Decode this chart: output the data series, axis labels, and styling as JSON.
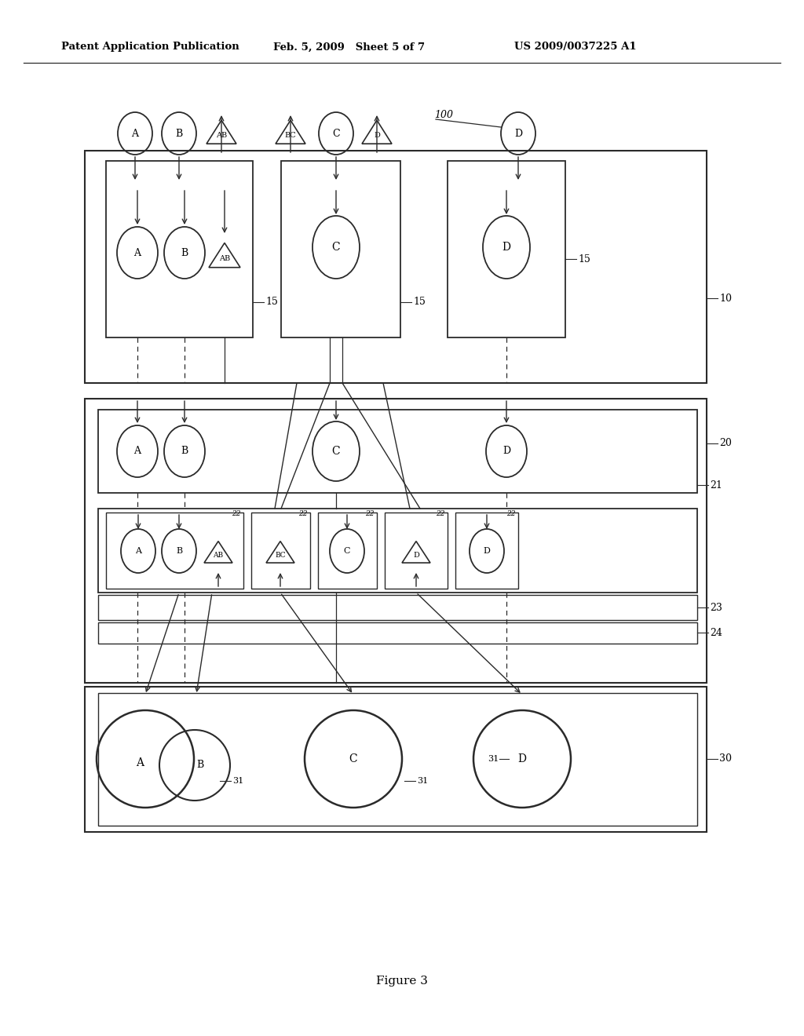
{
  "bg": "#ffffff",
  "lc": "#2a2a2a",
  "header_left": "Patent Application Publication",
  "header_mid": "Feb. 5, 2009   Sheet 5 of 7",
  "header_right": "US 2009/0037225 A1",
  "fig_label": "Figure 3",
  "L100": "100",
  "L10": "10",
  "L15": "15",
  "L20": "20",
  "L21": "21",
  "L22": "22",
  "L23": "23",
  "L24": "24",
  "L30": "30",
  "L31": "31"
}
